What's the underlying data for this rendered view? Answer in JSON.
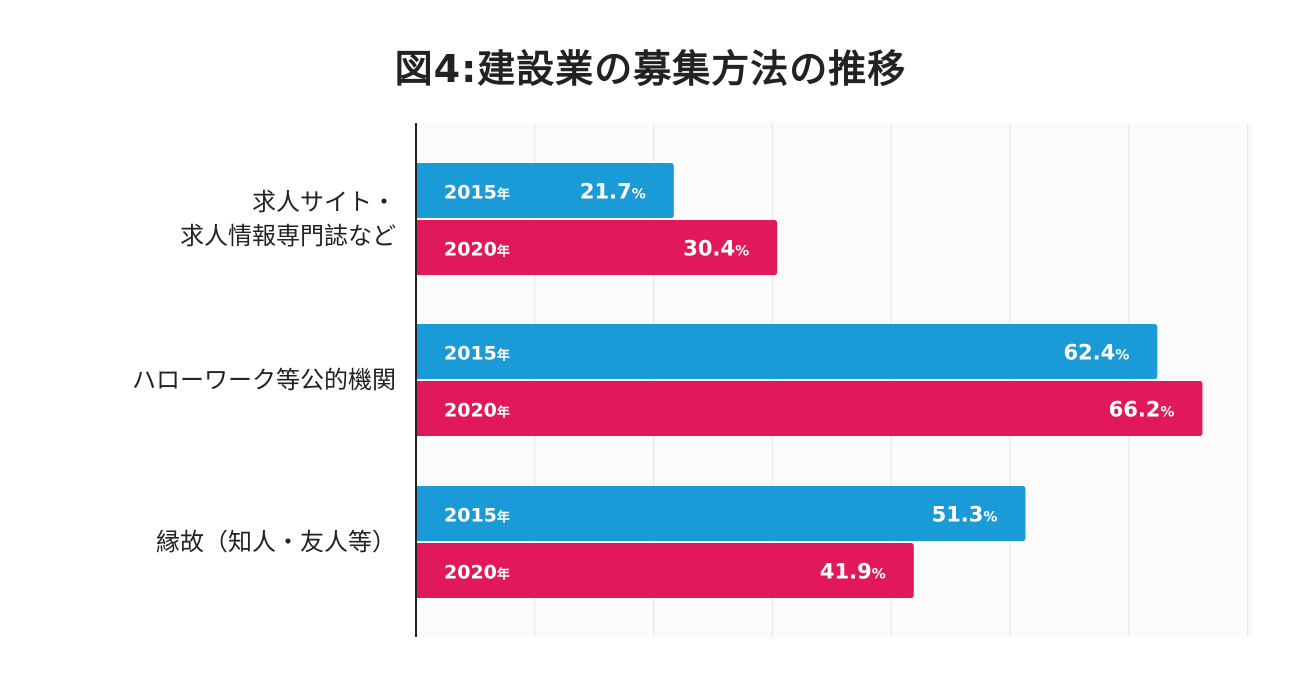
{
  "chart_data": {
    "type": "bar",
    "orientation": "horizontal",
    "title": "図4:建設業の募集方法の推移",
    "categories": [
      [
        "求人サイト・",
        "求人情報専門誌など"
      ],
      [
        "ハローワーク等公的機関"
      ],
      [
        "縁故（知人・友人等）"
      ]
    ],
    "series": [
      {
        "name": "2015年",
        "label": "2015",
        "unit": "年",
        "color": "#1a9ad7",
        "values": [
          21.7,
          62.4,
          51.3
        ]
      },
      {
        "name": "2020年",
        "label": "2020",
        "unit": "年",
        "color": "#e1195a",
        "values": [
          30.4,
          66.2,
          41.9
        ]
      }
    ],
    "value_suffix": "%",
    "xlim": [
      0,
      70
    ],
    "grid": true,
    "legend": "none (series names shown inside bars)"
  }
}
